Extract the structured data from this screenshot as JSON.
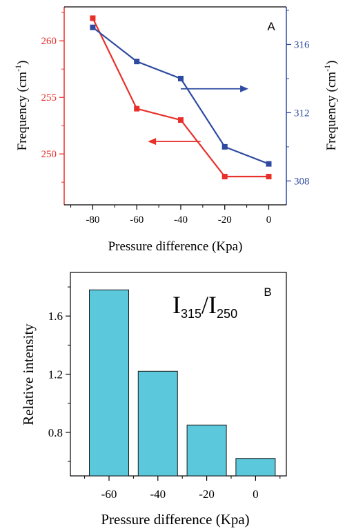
{
  "chart_data": [
    {
      "type": "line",
      "panel_label": "A",
      "xlabel": "Pressure difference (Kpa)",
      "ylabel_left": "Frequency (cm",
      "ylabel_right": "Frequency (cm",
      "ylabel_unit_sup": "-1",
      "ylabel_close": ")",
      "x_ticks": [
        "-80",
        "-60",
        "-40",
        "-20",
        "0"
      ],
      "y_left_ticks": [
        "250",
        "255",
        "260"
      ],
      "y_right_ticks": [
        "308",
        "312",
        "316"
      ],
      "xlim": [
        -93,
        8
      ],
      "ylim_left": [
        245.5,
        263
      ],
      "ylim_right": [
        306.6,
        318.2
      ],
      "grid": false,
      "legend": "none",
      "x": [
        -80,
        -60,
        -40,
        -20,
        0
      ],
      "series": [
        {
          "axis": "left",
          "color": "#e8302a",
          "values": [
            262,
            254,
            253,
            248,
            248
          ]
        },
        {
          "axis": "right",
          "color": "#2e4aa0",
          "values": [
            317,
            315,
            314,
            310,
            309
          ]
        }
      ],
      "annotations": [
        {
          "type": "arrow",
          "direction": "right",
          "axis": "right",
          "color": "#2e4aa0"
        },
        {
          "type": "arrow",
          "direction": "left",
          "axis": "left",
          "color": "#e8302a"
        }
      ]
    },
    {
      "type": "bar",
      "panel_label": "B",
      "annotation_main": "I",
      "annotation_sub1": "315",
      "annotation_slash": "/I",
      "annotation_sub2": "250",
      "xlabel": "Pressure difference (Kpa)",
      "ylabel": "Relative intensity",
      "categories": [
        "-60",
        "-40",
        "-20",
        "0"
      ],
      "y_ticks": [
        "0.8",
        "1.2",
        "1.6"
      ],
      "values": [
        1.78,
        1.22,
        0.85,
        0.62
      ],
      "ylim": [
        0.5,
        1.9
      ],
      "bar_color": "#5bc8dc",
      "grid": false,
      "legend": "none"
    }
  ]
}
